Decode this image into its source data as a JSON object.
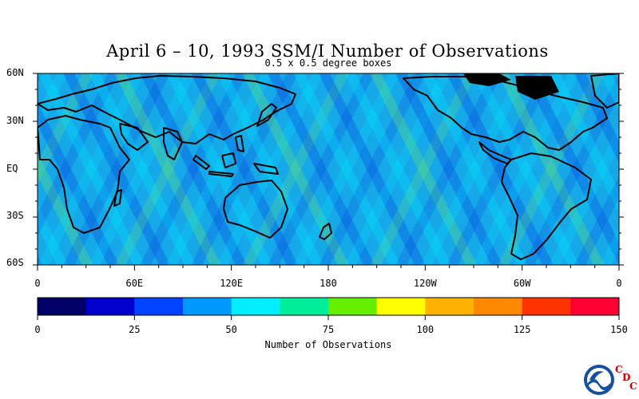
{
  "title": "April 6 – 10, 1993 SSM/I Number of Observations",
  "subtitle": "0.5 x 0.5 degree boxes",
  "lat_labels": [
    "60N",
    "30N",
    "EQ",
    "30S",
    "60S"
  ],
  "lon_labels": [
    "0",
    "60E",
    "120E",
    "180",
    "120W",
    "60W",
    "0"
  ],
  "colorbar": {
    "title": "Number of Observations",
    "tick_labels": [
      "0",
      "25",
      "50",
      "75",
      "100",
      "125",
      "150"
    ],
    "colors": [
      "#000066",
      "#0000cc",
      "#0044ff",
      "#0099ff",
      "#00eeff",
      "#00ee99",
      "#66ee00",
      "#ffff00",
      "#ffb300",
      "#ff8800",
      "#ff3300",
      "#ff0033"
    ]
  },
  "logo": {
    "name": "NOAA",
    "letters": [
      "C",
      "D",
      "C"
    ]
  }
}
